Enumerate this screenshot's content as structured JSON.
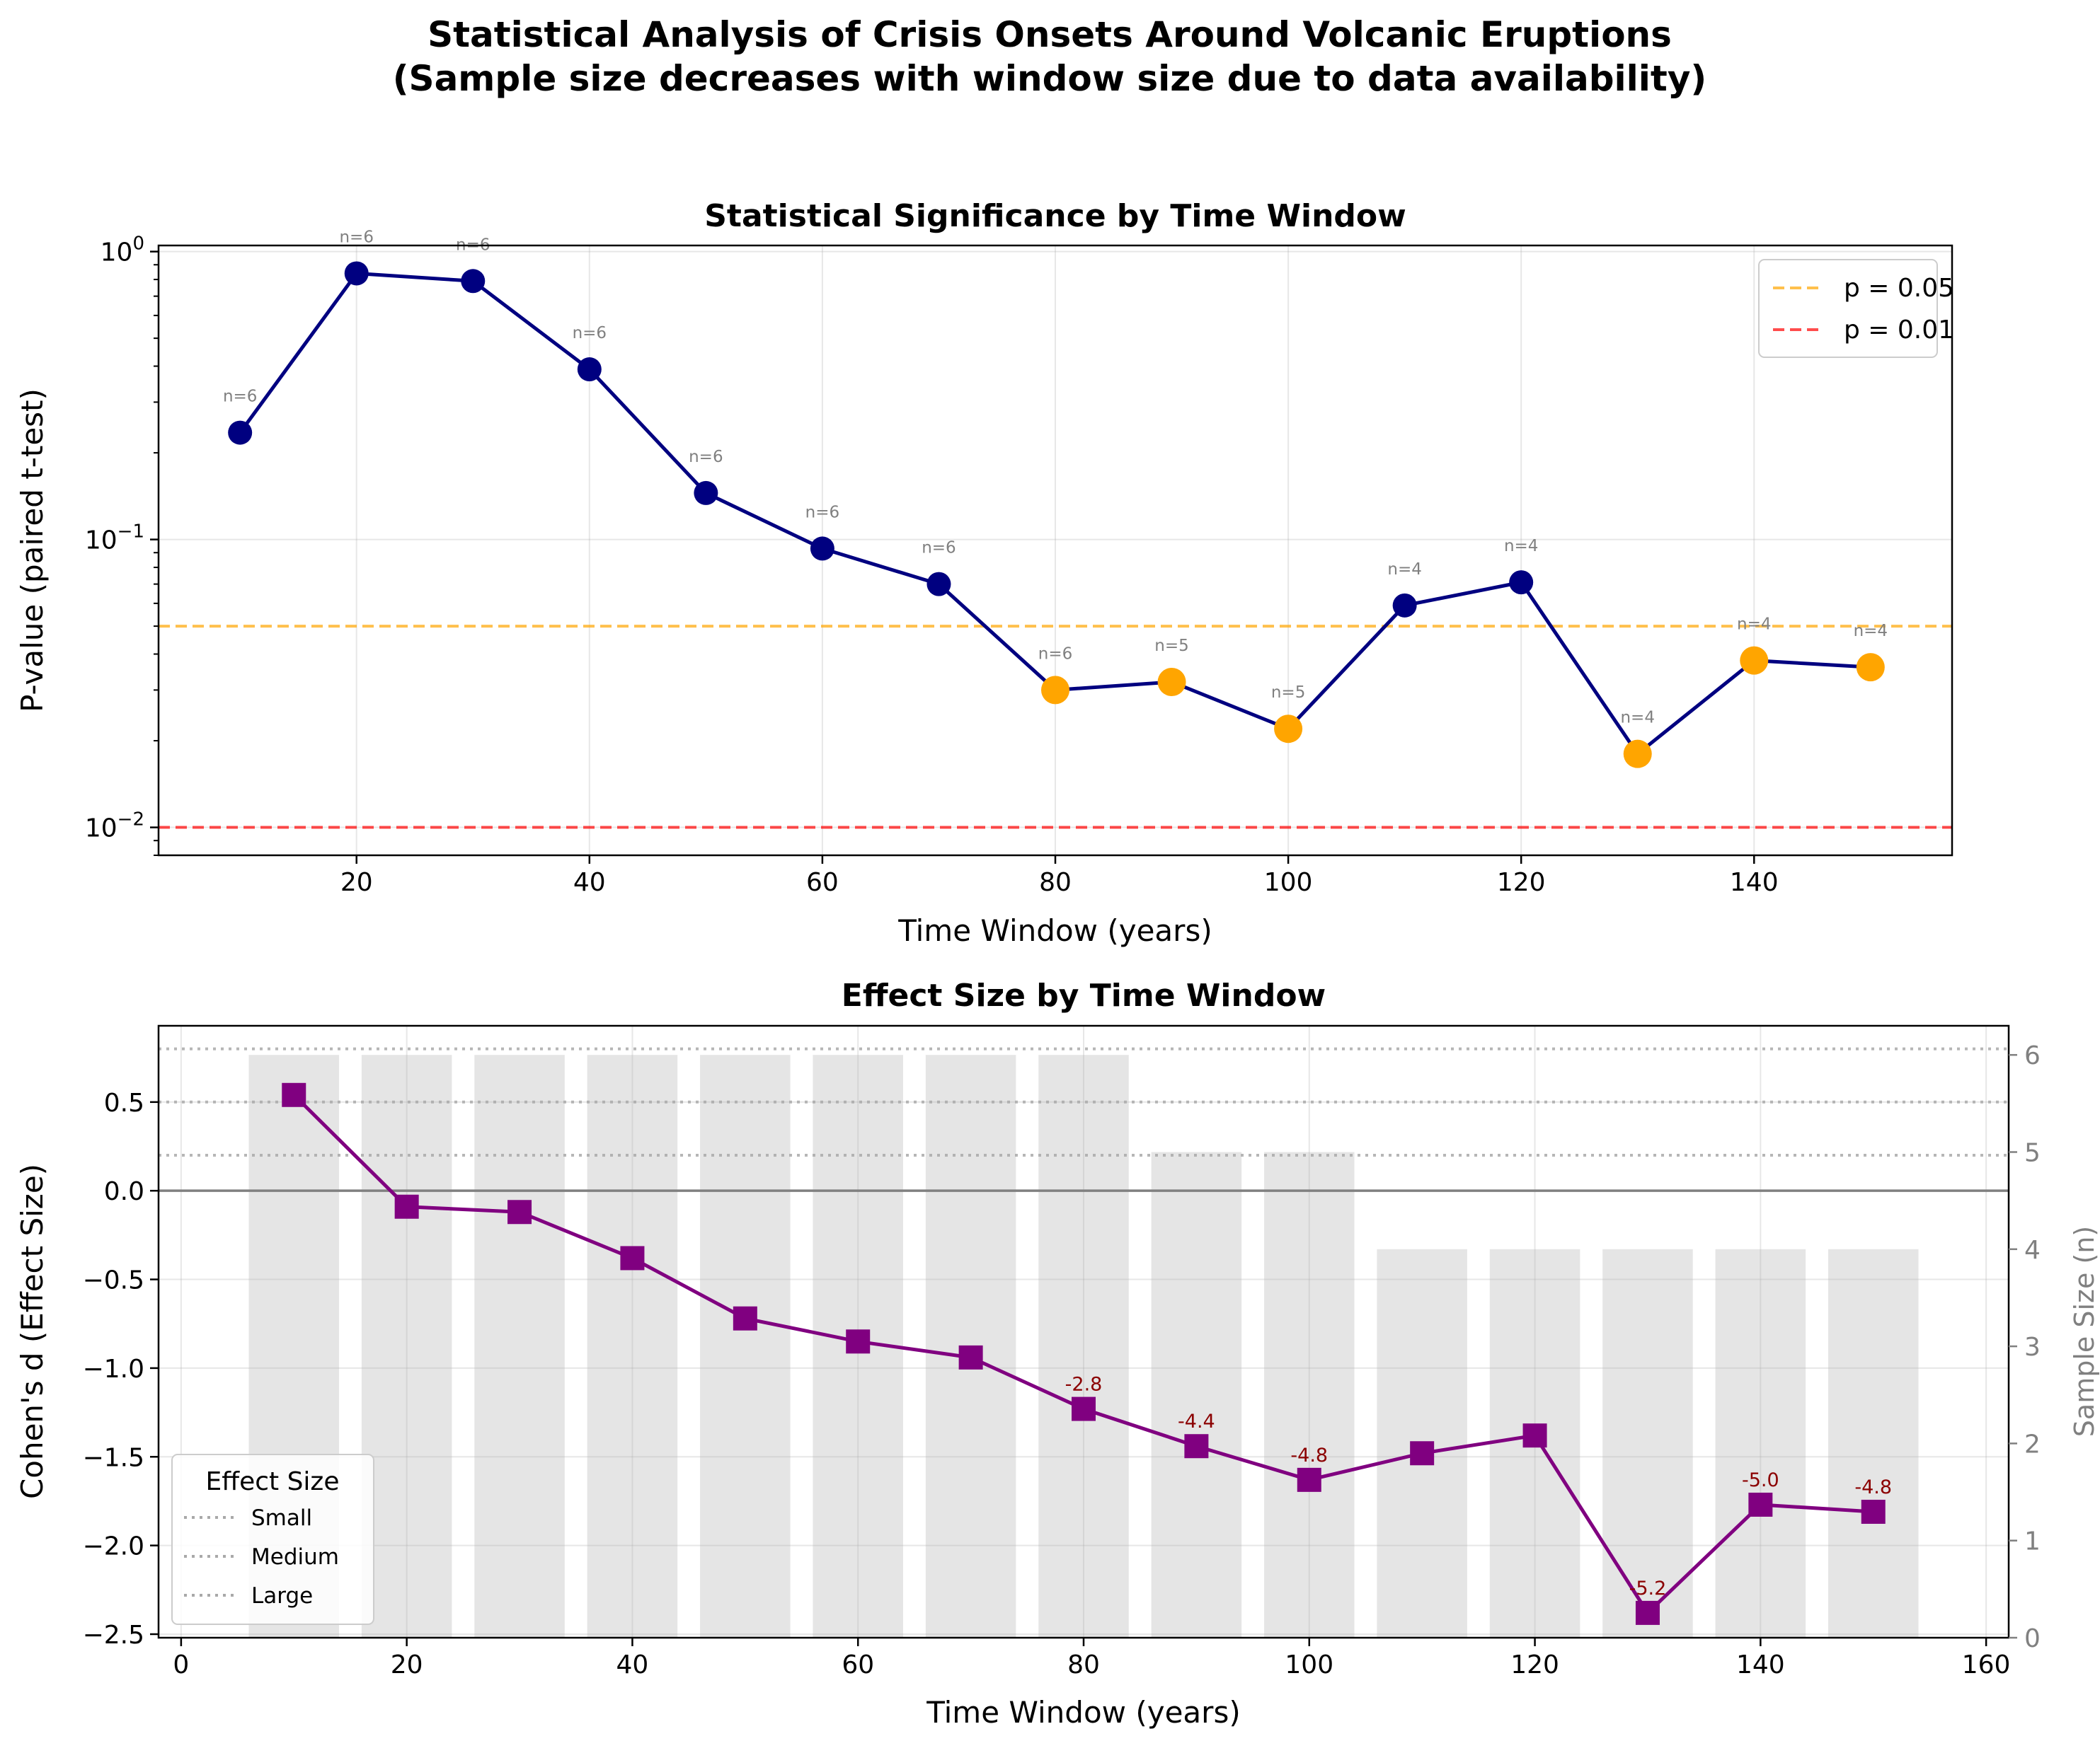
{
  "title_lines": [
    "Statistical Analysis of Crisis Onsets Around Volcanic Eruptions",
    "(Sample size decreases with window size due to data availability)"
  ],
  "chart_data": [
    {
      "type": "line",
      "title": "Statistical Significance by Time Window",
      "xlabel": "Time Window (years)",
      "ylabel": "P-value (paired t-test)",
      "yscale": "log",
      "ylim": [
        0.008,
        1.05
      ],
      "xlim": [
        3,
        157
      ],
      "xticks": [
        20,
        40,
        60,
        80,
        100,
        120,
        140
      ],
      "yticks": [
        {
          "value": 1,
          "label": "10^0"
        },
        {
          "value": 0.1,
          "label": "10^−1"
        },
        {
          "value": 0.01,
          "label": "10^−2"
        }
      ],
      "grid": true,
      "legend_position": "top-right",
      "x": [
        10,
        20,
        30,
        40,
        50,
        60,
        70,
        80,
        90,
        100,
        110,
        120,
        130,
        140,
        150
      ],
      "p_values": [
        0.235,
        0.84,
        0.79,
        0.39,
        0.145,
        0.093,
        0.07,
        0.03,
        0.032,
        0.022,
        0.059,
        0.071,
        0.018,
        0.038,
        0.036
      ],
      "n_labels": [
        "n=6",
        "n=6",
        "n=6",
        "n=6",
        "n=6",
        "n=6",
        "n=6",
        "n=6",
        "n=5",
        "n=5",
        "n=4",
        "n=4",
        "n=4",
        "n=4",
        "n=4"
      ],
      "line_color": "#000080",
      "significant_color": "#ffa500",
      "thresholds": [
        {
          "label": "p = 0.05",
          "value": 0.05,
          "color": "#ffa500"
        },
        {
          "label": "p = 0.01",
          "value": 0.01,
          "color": "#ff0000"
        }
      ]
    },
    {
      "type": "line",
      "title": "Effect Size by Time Window",
      "xlabel": "Time Window (years)",
      "ylabel": "Cohen's d (Effect Size)",
      "ylabel_right": "Sample Size (n)",
      "xlim": [
        -2,
        162
      ],
      "ylim": [
        -2.52,
        0.93
      ],
      "ylim_right": [
        0,
        6.3
      ],
      "xticks": [
        0,
        20,
        40,
        60,
        80,
        100,
        120,
        140,
        160
      ],
      "yticks": [
        0.5,
        0.0,
        -0.5,
        -1.0,
        -1.5,
        -2.0,
        -2.5
      ],
      "yticks_right": [
        0,
        1,
        2,
        3,
        4,
        5,
        6
      ],
      "grid": true,
      "legend_position": "lower-left",
      "x": [
        10,
        20,
        30,
        40,
        50,
        60,
        70,
        80,
        90,
        100,
        110,
        120,
        130,
        140,
        150
      ],
      "cohens_d": [
        0.54,
        -0.09,
        -0.12,
        -0.38,
        -0.72,
        -0.85,
        -0.94,
        -1.23,
        -1.44,
        -1.63,
        -1.48,
        -1.38,
        -2.38,
        -1.77,
        -1.81
      ],
      "sample_size": [
        6,
        6,
        6,
        6,
        6,
        6,
        6,
        6,
        5,
        5,
        4,
        4,
        4,
        4,
        4
      ],
      "annotations": [
        {
          "x": 80,
          "label": "-2.8"
        },
        {
          "x": 90,
          "label": "-4.4"
        },
        {
          "x": 100,
          "label": "-4.8"
        },
        {
          "x": 130,
          "label": "-5.2"
        },
        {
          "x": 140,
          "label": "-5.0"
        },
        {
          "x": 150,
          "label": "-4.8"
        }
      ],
      "line_color": "#800080",
      "bar_color": "#d3d3d3",
      "reference_lines": [
        0.2,
        0.5,
        0.8
      ],
      "legend_title": "Effect Size",
      "legend_entries": [
        "Small",
        "Medium",
        "Large"
      ]
    }
  ]
}
